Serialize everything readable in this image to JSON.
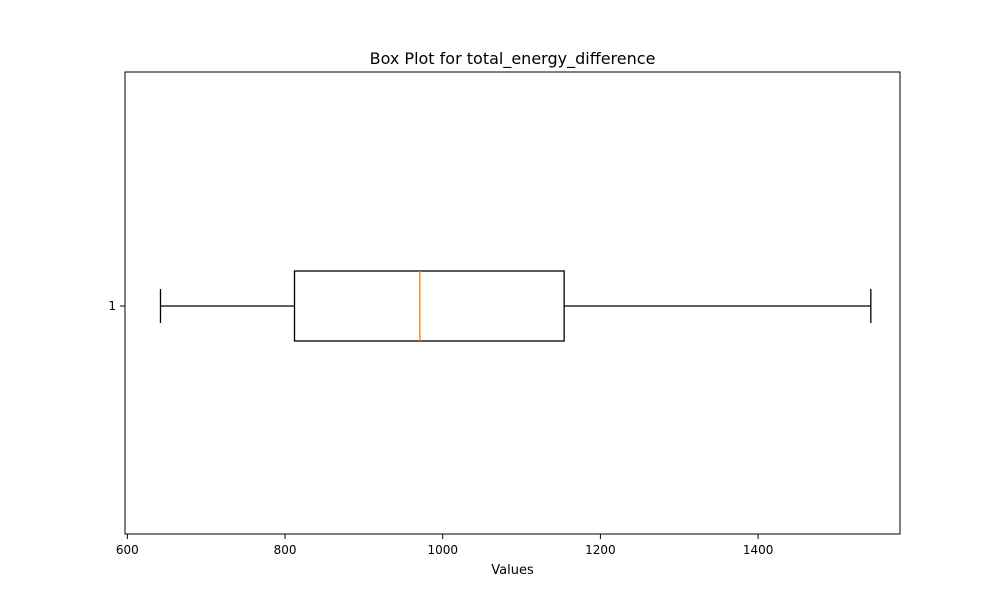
{
  "chart_data": {
    "type": "boxplot",
    "title": "Box Plot for total_energy_difference",
    "xlabel": "Values",
    "ylabel": "",
    "orientation": "horizontal",
    "categories": [
      "1"
    ],
    "xlim": [
      597,
      1580
    ],
    "xticks": [
      600,
      800,
      1000,
      1200,
      1400
    ],
    "grid": false,
    "series": [
      {
        "whisker_low": 642,
        "q1": 812,
        "median": 971,
        "q3": 1154,
        "whisker_high": 1543
      }
    ],
    "colors": {
      "box": "#000000",
      "median": "#ff7f0e",
      "whisker": "#000000",
      "axes": "#000000"
    }
  }
}
